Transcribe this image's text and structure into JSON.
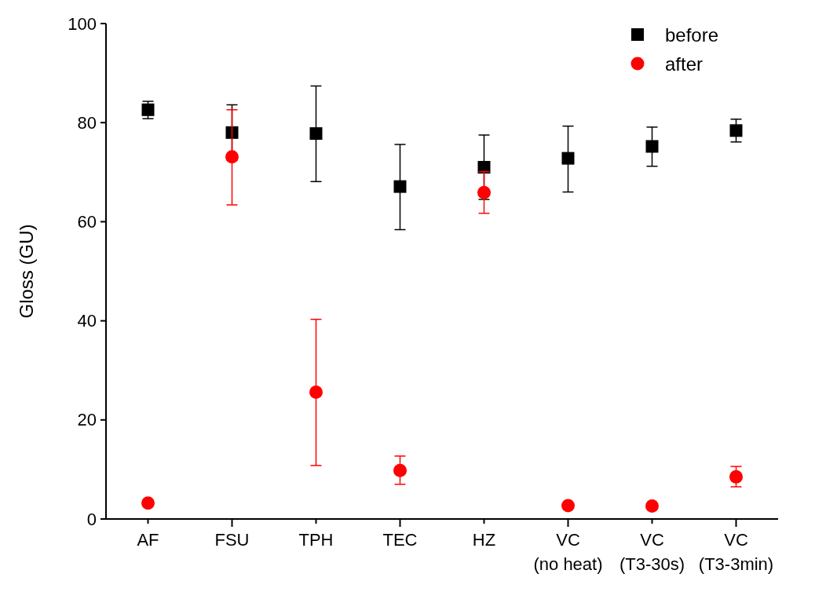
{
  "chart_data": {
    "type": "scatter",
    "ylabel": "Gloss (GU)",
    "categories": [
      "AF",
      "FSU",
      "TPH",
      "TEC",
      "HZ",
      "VC (no heat)",
      "VC (T3-30s)",
      "VC (T3-3min)"
    ],
    "series": [
      {
        "name": "before",
        "color": "#000000",
        "marker": "square",
        "values": [
          82.6,
          78.0,
          77.8,
          67.1,
          71.0,
          72.8,
          75.2,
          78.4
        ],
        "errors": [
          [
            80.8,
            84.3
          ],
          [
            72.4,
            83.6
          ],
          [
            68.1,
            87.4
          ],
          [
            58.4,
            75.6
          ],
          [
            64.5,
            77.5
          ],
          [
            66.0,
            79.3
          ],
          [
            71.2,
            79.1
          ],
          [
            76.1,
            80.7
          ]
        ]
      },
      {
        "name": "after",
        "color": "#ff0000",
        "marker": "circle",
        "values": [
          3.2,
          73.1,
          25.6,
          9.8,
          65.9,
          2.7,
          2.6,
          8.5
        ],
        "errors": [
          null,
          [
            63.4,
            82.6
          ],
          [
            10.8,
            40.3
          ],
          [
            7.0,
            12.7
          ],
          [
            61.7,
            70.1
          ],
          null,
          null,
          [
            6.5,
            10.6
          ]
        ]
      }
    ],
    "ylim": [
      0,
      100
    ],
    "yticks": [
      0,
      20,
      40,
      60,
      80,
      100
    ],
    "legend": "top right"
  }
}
